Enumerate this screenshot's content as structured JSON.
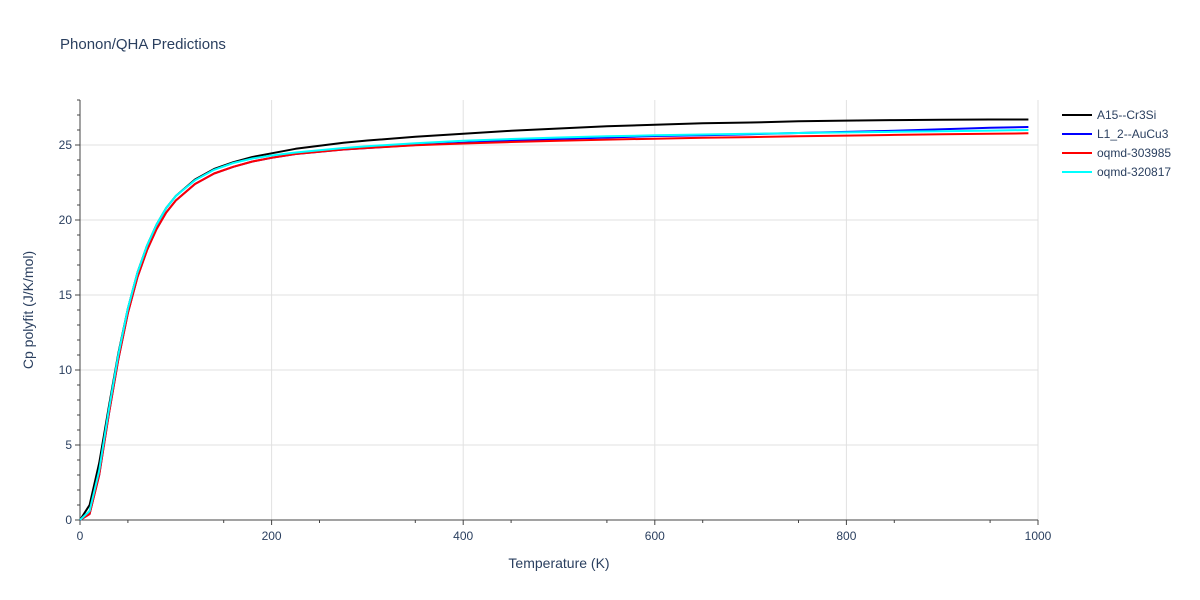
{
  "chart_data": {
    "type": "line",
    "title": "Phonon/QHA Predictions",
    "xlabel": "Temperature (K)",
    "ylabel": "Cp polyfit (J/K/mol)",
    "xlim": [
      0,
      1000
    ],
    "ylim": [
      0,
      28
    ],
    "xticks": [
      0,
      200,
      400,
      600,
      800,
      1000
    ],
    "yticks": [
      0,
      5,
      10,
      15,
      20,
      25
    ],
    "grid": true,
    "legend_position": "top-right",
    "series": [
      {
        "name": "A15--Cr3Si",
        "color": "#000000",
        "x": [
          0,
          10,
          20,
          30,
          40,
          50,
          60,
          70,
          80,
          90,
          100,
          120,
          140,
          160,
          180,
          200,
          225,
          250,
          275,
          300,
          350,
          400,
          450,
          500,
          550,
          600,
          650,
          700,
          750,
          800,
          850,
          900,
          950,
          990
        ],
        "y": [
          0,
          1.0,
          3.8,
          7.5,
          11.1,
          14.1,
          16.5,
          18.3,
          19.7,
          20.8,
          21.6,
          22.7,
          23.4,
          23.85,
          24.2,
          24.45,
          24.75,
          24.95,
          25.15,
          25.3,
          25.55,
          25.75,
          25.95,
          26.1,
          26.25,
          26.35,
          26.45,
          26.5,
          26.58,
          26.63,
          26.66,
          26.68,
          26.7,
          26.7
        ]
      },
      {
        "name": "L1_2--AuCu3",
        "color": "#0000ff",
        "x": [
          0,
          10,
          20,
          30,
          40,
          50,
          60,
          70,
          80,
          90,
          100,
          120,
          140,
          160,
          180,
          200,
          225,
          250,
          275,
          300,
          350,
          400,
          450,
          500,
          550,
          600,
          650,
          700,
          750,
          800,
          850,
          900,
          950,
          990
        ],
        "y": [
          0,
          0.4,
          3.0,
          7.0,
          10.7,
          13.8,
          16.2,
          18.0,
          19.4,
          20.5,
          21.3,
          22.4,
          23.1,
          23.55,
          23.9,
          24.15,
          24.4,
          24.55,
          24.7,
          24.8,
          25.0,
          25.15,
          25.3,
          25.4,
          25.5,
          25.6,
          25.65,
          25.72,
          25.8,
          25.87,
          25.95,
          26.05,
          26.15,
          26.2
        ]
      },
      {
        "name": "oqmd-303985",
        "color": "#ff0000",
        "x": [
          0,
          10,
          20,
          30,
          40,
          50,
          60,
          70,
          80,
          90,
          100,
          120,
          140,
          160,
          180,
          200,
          225,
          250,
          275,
          300,
          350,
          400,
          450,
          500,
          550,
          600,
          650,
          700,
          750,
          800,
          850,
          900,
          950,
          990
        ],
        "y": [
          0,
          0.4,
          3.0,
          7.0,
          10.7,
          13.8,
          16.2,
          18.0,
          19.4,
          20.5,
          21.3,
          22.4,
          23.1,
          23.55,
          23.9,
          24.15,
          24.4,
          24.55,
          24.7,
          24.8,
          24.98,
          25.1,
          25.2,
          25.28,
          25.36,
          25.42,
          25.48,
          25.53,
          25.58,
          25.63,
          25.67,
          25.71,
          25.75,
          25.78
        ]
      },
      {
        "name": "oqmd-320817",
        "color": "#00ffff",
        "x": [
          0,
          10,
          20,
          30,
          40,
          50,
          60,
          70,
          80,
          90,
          100,
          120,
          140,
          160,
          180,
          200,
          225,
          250,
          275,
          300,
          350,
          400,
          450,
          500,
          550,
          600,
          650,
          700,
          750,
          800,
          850,
          900,
          950,
          990
        ],
        "y": [
          0,
          0.6,
          3.3,
          7.3,
          11.0,
          14.1,
          16.5,
          18.3,
          19.7,
          20.8,
          21.6,
          22.65,
          23.35,
          23.8,
          24.1,
          24.3,
          24.5,
          24.65,
          24.8,
          24.92,
          25.12,
          25.28,
          25.4,
          25.5,
          25.58,
          25.65,
          25.7,
          25.75,
          25.8,
          25.84,
          25.88,
          25.92,
          25.96,
          26.0
        ]
      }
    ]
  }
}
